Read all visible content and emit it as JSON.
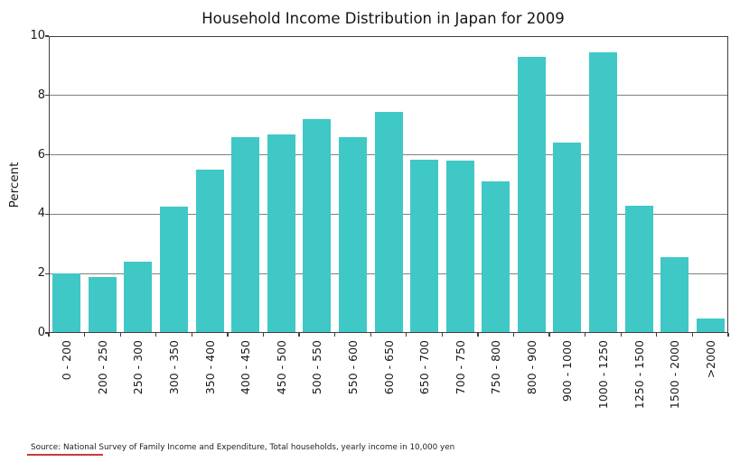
{
  "chart_data": {
    "type": "bar",
    "title": "Household Income Distribution in Japan for 2009",
    "xlabel": "",
    "ylabel": "Percent",
    "categories": [
      "0 - 200",
      "200 - 250",
      "250 - 300",
      "300 - 350",
      "350 - 400",
      "400 - 450",
      "450 - 500",
      "500 - 550",
      "550 - 600",
      "600 - 650",
      "650 - 700",
      "700 - 750",
      "750 - 800",
      "800 - 900",
      "900 - 1000",
      "1000 - 1250",
      "1250 - 1500",
      "1500 - 2000",
      ">2000"
    ],
    "values": [
      2.0,
      1.9,
      2.4,
      4.25,
      5.5,
      6.6,
      6.7,
      7.2,
      6.6,
      7.45,
      5.85,
      5.8,
      5.1,
      9.3,
      6.4,
      9.45,
      4.3,
      2.55,
      0.5
    ],
    "ylim": [
      0,
      10
    ],
    "yticks": [
      0,
      2,
      4,
      6,
      8,
      10
    ],
    "grid": true,
    "grid_axisbelow": true,
    "legend": false
  },
  "source_note": "Source: National Survey of Family Income and Expenditure, Total households, yearly income in 10,000 yen",
  "colors": {
    "bar": "#3fc8c6",
    "grid": "#808080",
    "spine": "#3f3f3f",
    "text": "#1a1a1a",
    "red_underline": "#cb3a3a"
  }
}
